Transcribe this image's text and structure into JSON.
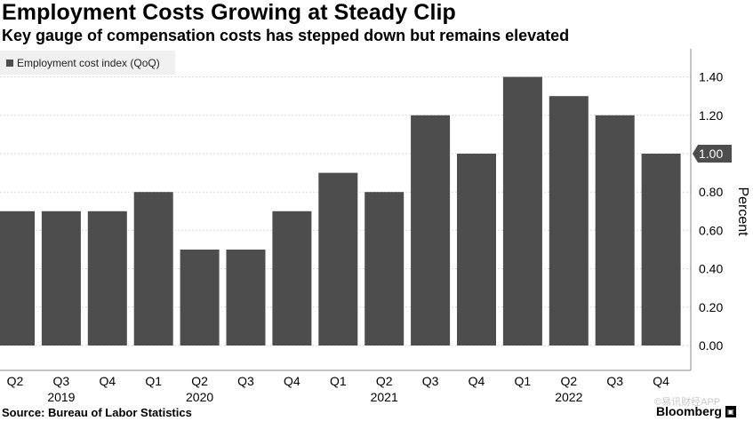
{
  "title": "Employment Costs Growing at Steady Clip",
  "subtitle": "Key gauge of compensation costs has stepped down but remains elevated",
  "source": "Source: Bureau of Labor Statistics",
  "brand": "Bloomberg",
  "watermark": "©易讯财经APP",
  "colors": {
    "bar": "#4d4d4d",
    "grid": "#d9d9d9",
    "axis": "#888888",
    "callout": "#4d4d4d"
  },
  "chart_data": {
    "type": "bar",
    "title": "Employment Costs Growing at Steady Clip",
    "subtitle": "Key gauge of compensation costs has stepped down but remains elevated",
    "series": [
      {
        "name": "Employment cost index (QoQ)",
        "values": [
          0.7,
          0.7,
          0.7,
          0.8,
          0.5,
          0.5,
          0.7,
          0.9,
          0.8,
          1.2,
          1.0,
          1.4,
          1.3,
          1.2,
          1.0
        ]
      }
    ],
    "categories": [
      "Q2",
      "Q3",
      "Q4",
      "Q1",
      "Q2",
      "Q3",
      "Q4",
      "Q1",
      "Q2",
      "Q3",
      "Q4",
      "Q1",
      "Q2",
      "Q3",
      "Q4"
    ],
    "year_labels": [
      {
        "label": "2019",
        "category_index": 1
      },
      {
        "label": "2020",
        "category_index": 4
      },
      {
        "label": "2021",
        "category_index": 8
      },
      {
        "label": "2022",
        "category_index": 12
      }
    ],
    "ylabel": "Percent",
    "ylim": [
      0,
      1.6
    ],
    "yticks": [
      0.0,
      0.2,
      0.4,
      0.6,
      0.8,
      1.0,
      1.2,
      1.4
    ],
    "ytick_labels": [
      "0.00",
      "0.20",
      "0.40",
      "0.60",
      "0.80",
      "1.00",
      "1.20",
      "1.40"
    ],
    "last_value_callout": "1.00",
    "grid": true,
    "legend_position": "top-left"
  }
}
